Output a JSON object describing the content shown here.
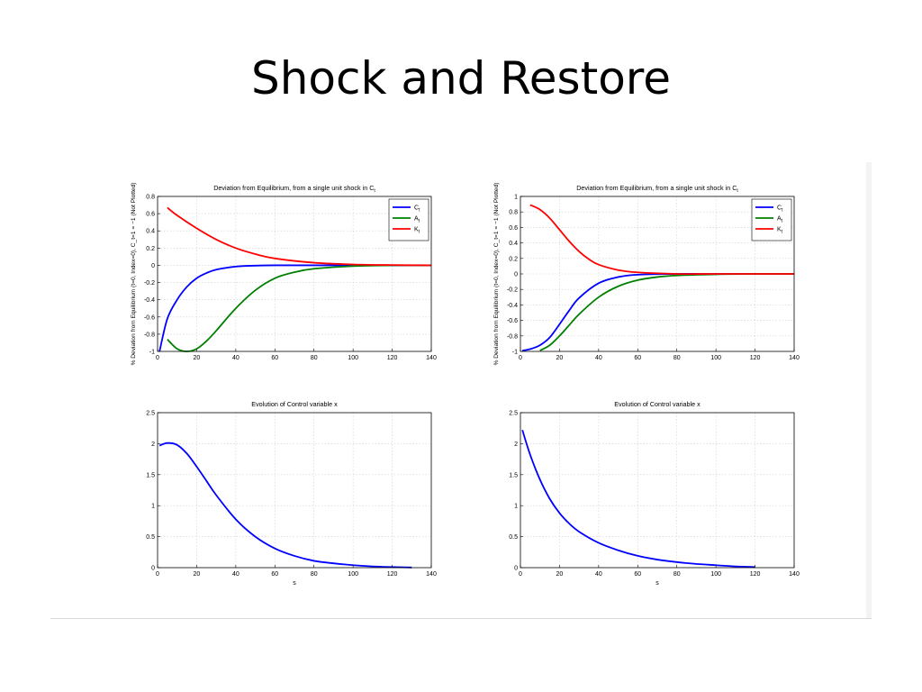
{
  "slide": {
    "title": "Shock and Restore"
  },
  "chart_data": [
    {
      "type": "line",
      "title_main": "Deviation from Equilibrium, from a single unit shock in C",
      "title_sub": "t",
      "ylabel": "% Deviation from Equilibrium (t=0, Index=0), C_t=1 = −1 (Not Plotted)",
      "xlabel": "",
      "xlim": [
        0,
        140
      ],
      "ylim": [
        -1,
        0.8
      ],
      "xticks": [
        0,
        20,
        40,
        60,
        80,
        100,
        120,
        140
      ],
      "yticks": [
        -1,
        -0.8,
        -0.6,
        -0.4,
        -0.2,
        0,
        0.2,
        0.4,
        0.6,
        0.8
      ],
      "grid": true,
      "legend_position": "top-right",
      "series": [
        {
          "name": "C",
          "sub": "t",
          "color": "#0000ff",
          "x": [
            1,
            5,
            10,
            15,
            20,
            25,
            30,
            40,
            50,
            60,
            80,
            100,
            140
          ],
          "y": [
            -1,
            -0.62,
            -0.4,
            -0.25,
            -0.15,
            -0.09,
            -0.05,
            -0.015,
            -0.004,
            0,
            0,
            0,
            0
          ]
        },
        {
          "name": "A",
          "sub": "t",
          "color": "#008000",
          "x": [
            5,
            10,
            15,
            20,
            25,
            30,
            40,
            50,
            60,
            70,
            80,
            100,
            120,
            140
          ],
          "y": [
            -0.86,
            -0.97,
            -1,
            -0.97,
            -0.88,
            -0.76,
            -0.5,
            -0.29,
            -0.15,
            -0.08,
            -0.04,
            -0.01,
            0,
            0
          ]
        },
        {
          "name": "K",
          "sub": "t",
          "color": "#ff0000",
          "x": [
            5,
            10,
            20,
            30,
            40,
            50,
            60,
            80,
            100,
            120,
            140
          ],
          "y": [
            0.67,
            0.58,
            0.43,
            0.3,
            0.2,
            0.13,
            0.08,
            0.03,
            0.01,
            0.003,
            0
          ]
        }
      ]
    },
    {
      "type": "line",
      "title_main": "Deviation from Equilibrium, from a single unit shock in C",
      "title_sub": "t",
      "ylabel": "% Deviation from Equilibrium (t=0, Index=0), C_t=1 = −1 (Not Plotted)",
      "xlabel": "",
      "xlim": [
        0,
        140
      ],
      "ylim": [
        -1,
        1
      ],
      "xticks": [
        0,
        20,
        40,
        60,
        80,
        100,
        120,
        140
      ],
      "yticks": [
        -1,
        -0.8,
        -0.6,
        -0.4,
        -0.2,
        0,
        0.2,
        0.4,
        0.6,
        0.8,
        1
      ],
      "grid": true,
      "legend_position": "top-right",
      "series": [
        {
          "name": "C",
          "sub": "t",
          "color": "#0000ff",
          "x": [
            1,
            5,
            10,
            15,
            20,
            25,
            30,
            40,
            50,
            60,
            80,
            100,
            120,
            140
          ],
          "y": [
            -0.99,
            -0.97,
            -0.92,
            -0.82,
            -0.65,
            -0.47,
            -0.31,
            -0.12,
            -0.04,
            -0.01,
            0,
            0,
            0,
            0
          ]
        },
        {
          "name": "A",
          "sub": "t",
          "color": "#008000",
          "x": [
            10,
            15,
            20,
            25,
            30,
            40,
            50,
            60,
            70,
            80,
            100,
            120,
            140
          ],
          "y": [
            -0.99,
            -0.92,
            -0.8,
            -0.66,
            -0.52,
            -0.3,
            -0.16,
            -0.08,
            -0.04,
            -0.02,
            -0.005,
            0,
            0
          ]
        },
        {
          "name": "K",
          "sub": "t",
          "color": "#ff0000",
          "x": [
            5,
            10,
            15,
            20,
            25,
            30,
            35,
            40,
            50,
            60,
            80,
            100,
            140
          ],
          "y": [
            0.89,
            0.83,
            0.72,
            0.57,
            0.42,
            0.29,
            0.19,
            0.12,
            0.05,
            0.02,
            0,
            0,
            0
          ]
        }
      ]
    },
    {
      "type": "line",
      "title_main": "Evolution of Control variable x",
      "title_sub": "",
      "ylabel": "",
      "xlabel": "s",
      "xlim": [
        0,
        140
      ],
      "ylim": [
        0,
        2.5
      ],
      "xticks": [
        0,
        20,
        40,
        60,
        80,
        100,
        120,
        140
      ],
      "yticks": [
        0,
        0.5,
        1,
        1.5,
        2,
        2.5
      ],
      "grid": true,
      "legend_position": "none",
      "series": [
        {
          "name": "",
          "sub": "",
          "color": "#0000ff",
          "x": [
            1,
            5,
            10,
            15,
            20,
            25,
            30,
            40,
            50,
            60,
            70,
            80,
            90,
            100,
            110,
            120,
            130
          ],
          "y": [
            1.97,
            2.01,
            1.98,
            1.84,
            1.63,
            1.4,
            1.17,
            0.78,
            0.5,
            0.31,
            0.19,
            0.11,
            0.07,
            0.04,
            0.02,
            0.01,
            0.003
          ]
        }
      ]
    },
    {
      "type": "line",
      "title_main": "Evolution of Control variable x",
      "title_sub": "",
      "ylabel": "",
      "xlabel": "s",
      "xlim": [
        0,
        140
      ],
      "ylim": [
        0,
        2.5
      ],
      "xticks": [
        0,
        20,
        40,
        60,
        80,
        100,
        120,
        140
      ],
      "yticks": [
        0,
        0.5,
        1,
        1.5,
        2,
        2.5
      ],
      "grid": true,
      "legend_position": "none",
      "series": [
        {
          "name": "",
          "sub": "",
          "color": "#0000ff",
          "x": [
            1,
            5,
            10,
            15,
            20,
            25,
            30,
            40,
            50,
            60,
            70,
            80,
            90,
            100,
            110,
            120
          ],
          "y": [
            2.22,
            1.82,
            1.42,
            1.11,
            0.88,
            0.71,
            0.58,
            0.4,
            0.28,
            0.19,
            0.13,
            0.09,
            0.06,
            0.04,
            0.02,
            0.01
          ]
        }
      ]
    }
  ]
}
